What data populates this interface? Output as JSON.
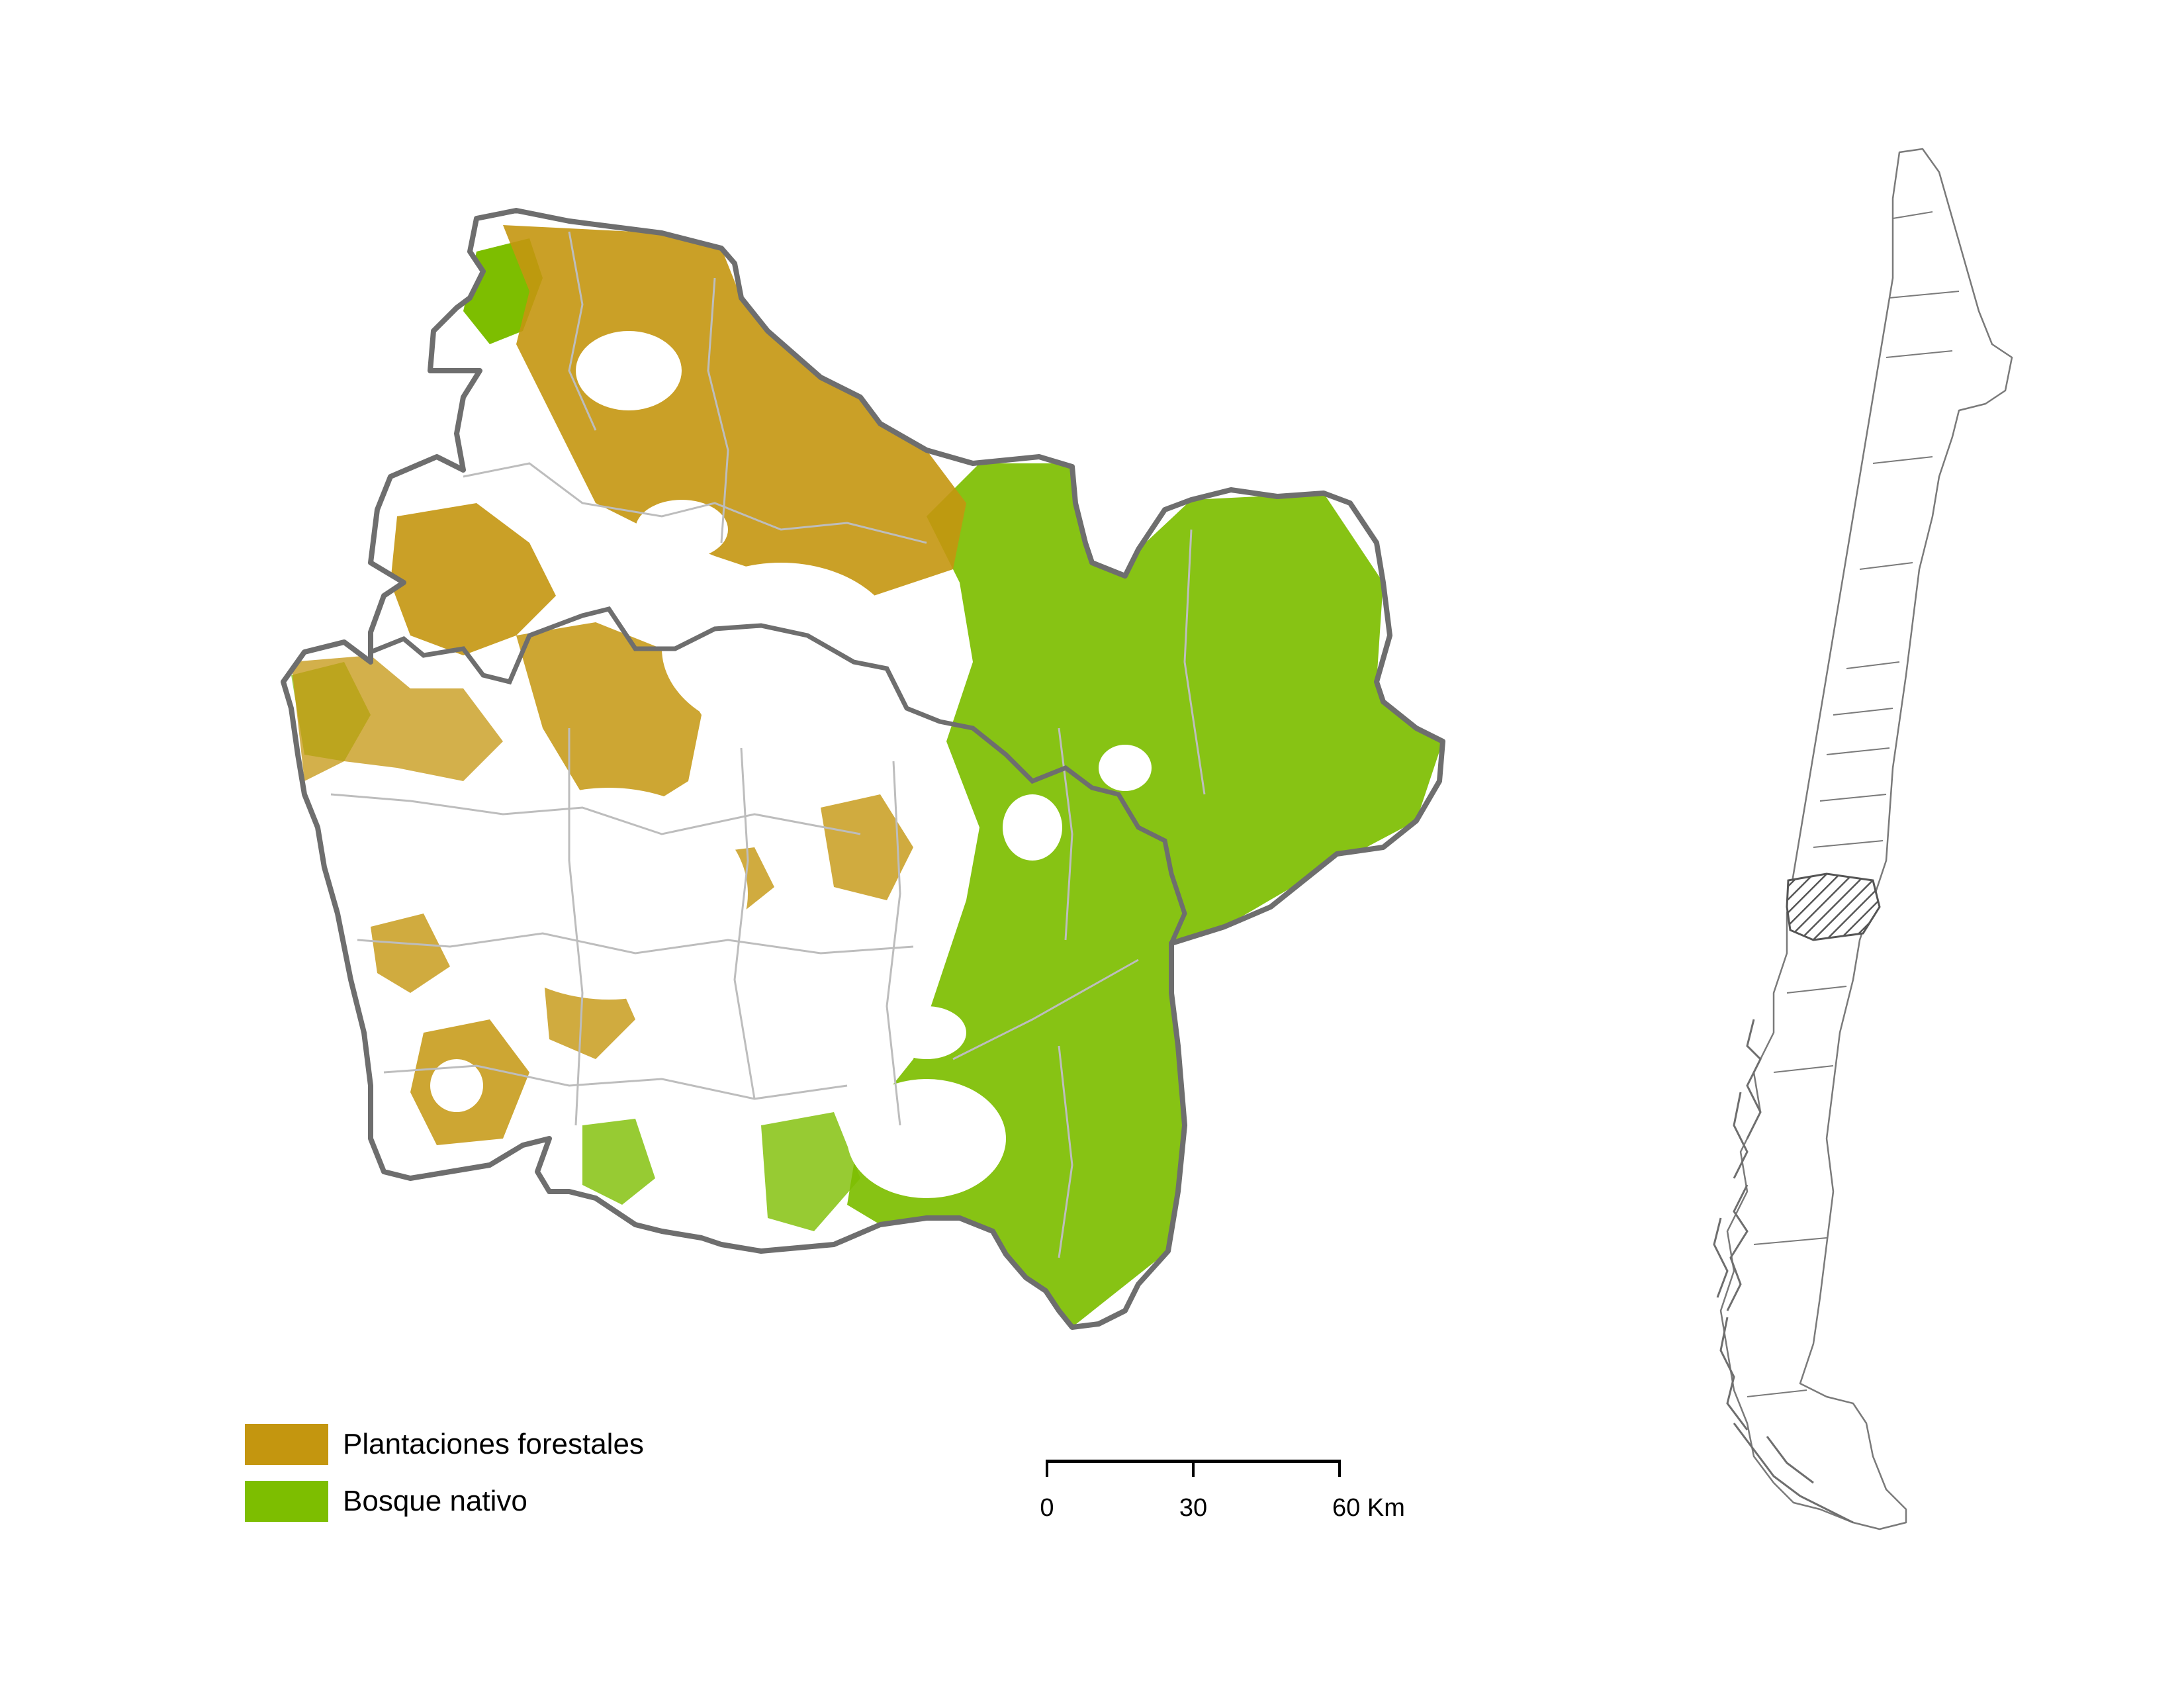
{
  "legend": {
    "items": [
      {
        "label": "Plantaciones forestales",
        "color": "#C4960F"
      },
      {
        "label": "Bosque nativo",
        "color": "#7DBE00"
      }
    ]
  },
  "scale_bar": {
    "ticks": [
      "0",
      "30",
      "60 Km"
    ]
  },
  "colors": {
    "region_outline": "#6E6E6E",
    "commune_lines": "#BDBDBD",
    "plantation": "#C4960F",
    "native_forest": "#7DBE00",
    "inset_outline": "#7A7A7A",
    "inset_highlight": "#555555"
  }
}
